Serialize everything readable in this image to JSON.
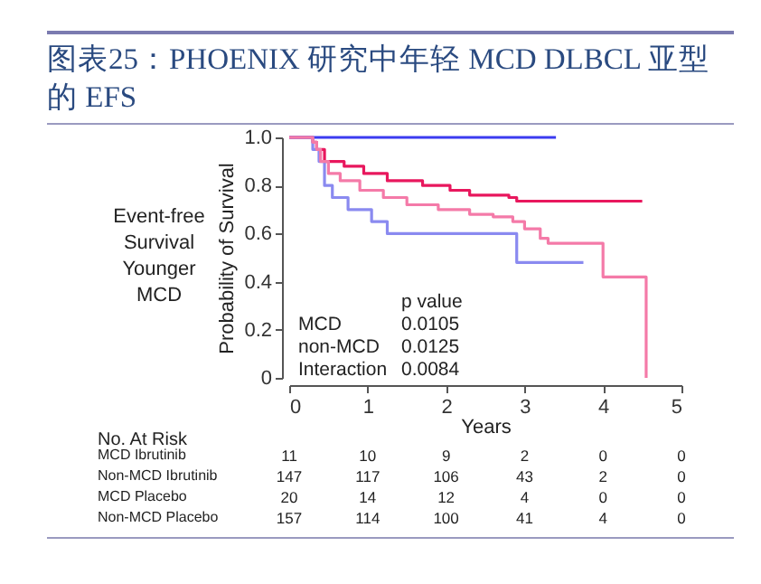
{
  "chart_data": {
    "type": "step",
    "title": "图表25：PHOENIX 研究中年轻 MCD DLBCL 亚型的 EFS",
    "xlabel": "Years",
    "ylabel": "Probability of Survival",
    "xlim": [
      0,
      5
    ],
    "xticks": [
      0,
      1,
      2,
      3,
      4,
      5
    ],
    "ylim": [
      0,
      1
    ],
    "yticks": [
      {
        "value": 0,
        "label": "0"
      },
      {
        "value": 0.2,
        "label": "0.2"
      },
      {
        "value": 0.4,
        "label": "0.4"
      },
      {
        "value": 0.6,
        "label": "0.6"
      },
      {
        "value": 0.8,
        "label": "0.8"
      },
      {
        "value": 1,
        "label": "1.0"
      }
    ],
    "grid": false,
    "legend": false,
    "marker": "none",
    "line_style": "solid",
    "series": [
      {
        "color": "#3b3bf0",
        "x": [
          0,
          3.4
        ],
        "values": [
          1,
          1
        ]
      },
      {
        "color": "#e8175d",
        "x": [
          0,
          0.3,
          0.35,
          0.45,
          0.7,
          0.95,
          1.25,
          1.7,
          2.05,
          2.3,
          2.8,
          2.9,
          4.5
        ],
        "values": [
          1,
          0.98,
          0.95,
          0.9,
          0.88,
          0.85,
          0.82,
          0.8,
          0.78,
          0.76,
          0.75,
          0.735,
          0.735
        ]
      },
      {
        "color": "#8a8af0",
        "x": [
          0,
          0.3,
          0.38,
          0.45,
          0.55,
          0.75,
          1.05,
          1.25,
          2.9,
          3.75
        ],
        "values": [
          1,
          0.95,
          0.9,
          0.8,
          0.75,
          0.7,
          0.65,
          0.6,
          0.48,
          0.48
        ]
      },
      {
        "color": "#f47aa8",
        "x": [
          0,
          0.3,
          0.35,
          0.4,
          0.5,
          0.65,
          0.9,
          1.2,
          1.5,
          1.9,
          2.3,
          2.6,
          2.85,
          3.0,
          3.2,
          3.3,
          4.0,
          4.55,
          4.55
        ],
        "values": [
          1,
          0.98,
          0.95,
          0.9,
          0.85,
          0.82,
          0.78,
          0.75,
          0.72,
          0.7,
          0.68,
          0.67,
          0.65,
          0.62,
          0.58,
          0.56,
          0.42,
          0,
          0
        ]
      }
    ],
    "annotations": [
      "Event-free Survival Younger MCD",
      "\tp value",
      "MCD\t0.0105",
      "non-MCD\t0.0125",
      "Interaction\t0.0084",
      "No. At Risk",
      "MCD Ibrutinib\t11\t10\t9\t2\t0\t0",
      "Non-MCD Ibrutinib\t147\t117\t106\t43\t2\t0",
      "MCD Placebo\t20\t14\t12\t4\t0\t0",
      "Non-MCD Placebo\t157\t114\t100\t41\t4\t0"
    ]
  }
}
